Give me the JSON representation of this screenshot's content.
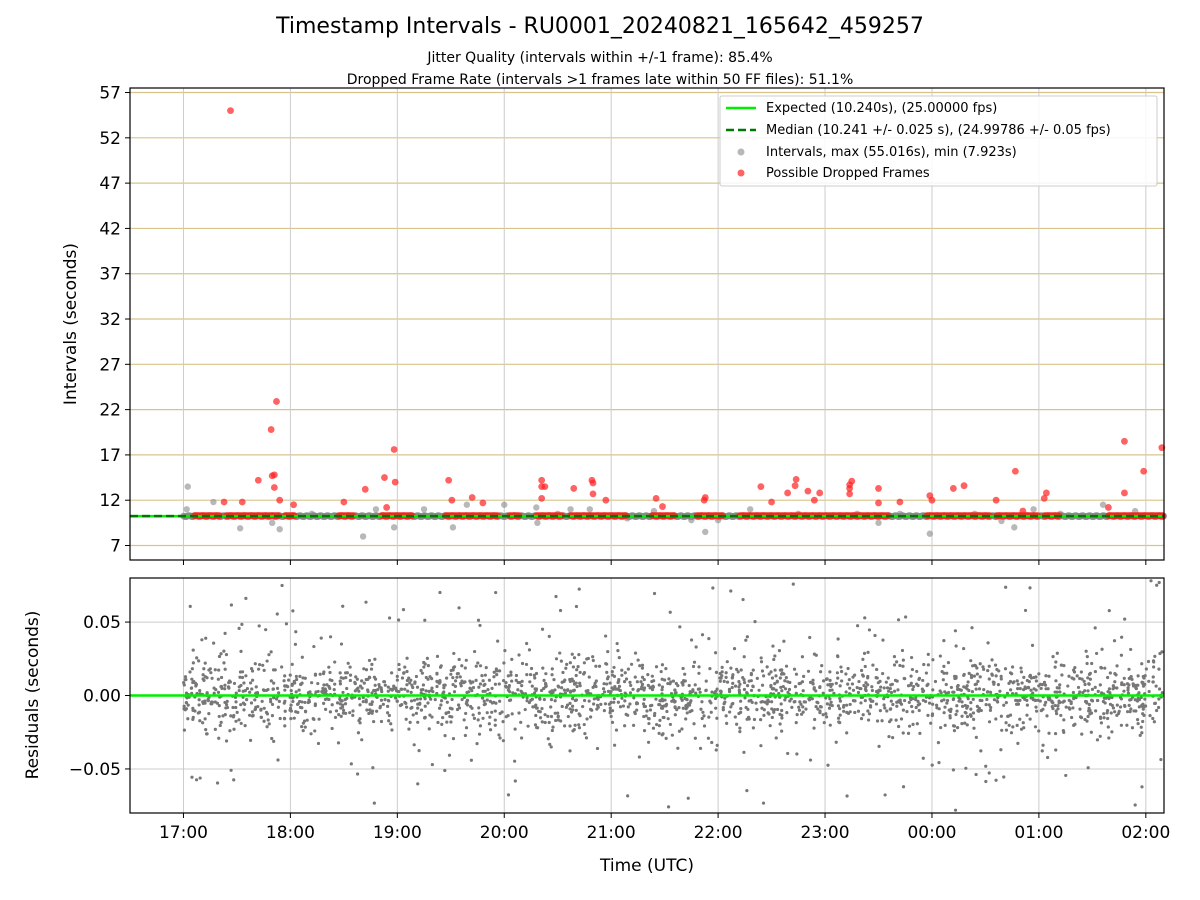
{
  "chart_data": [
    {
      "type": "scatter",
      "title": "Timestamp Intervals - RU0001_20240821_165642_459257",
      "subtitles": [
        "Jitter Quality (intervals within +/-1 frame): 85.4%",
        "Dropped Frame Rate (intervals >1 frames late within 50 FF files): 51.1%"
      ],
      "ylabel": "Intervals (seconds)",
      "ylim": [
        5.4,
        57.5
      ],
      "yticks": [
        7,
        12,
        17,
        22,
        27,
        32,
        37,
        42,
        47,
        52,
        57
      ],
      "xlim_hours": [
        16.5,
        26.17
      ],
      "grid": "on",
      "legend_position": "upper right",
      "series": [
        {
          "name": "Expected (10.240s), (25.00000 fps)",
          "kind": "line",
          "color": "#00ee00",
          "y": 10.24
        },
        {
          "name": "Median (10.241 +/- 0.025 s), (24.99786 +/- 0.05 fps)",
          "kind": "dashed-line",
          "color": "#007700",
          "y": 10.241
        },
        {
          "name": "Intervals, max (55.016s), min (7.923s)",
          "kind": "scatter",
          "color": "#888888",
          "points": [
            [
              17.04,
              13.5
            ],
            [
              17.03,
              11.0
            ],
            [
              17.28,
              11.8
            ],
            [
              17.53,
              8.9
            ],
            [
              17.83,
              9.5
            ],
            [
              17.9,
              8.8
            ],
            [
              18.2,
              10.5
            ],
            [
              18.68,
              8.0
            ],
            [
              18.8,
              11.0
            ],
            [
              18.97,
              9.0
            ],
            [
              19.25,
              11.0
            ],
            [
              19.52,
              9.0
            ],
            [
              19.65,
              11.5
            ],
            [
              20.0,
              11.5
            ],
            [
              20.31,
              9.5
            ],
            [
              20.3,
              11.2
            ],
            [
              20.5,
              10.5
            ],
            [
              20.62,
              11.0
            ],
            [
              20.8,
              11.0
            ],
            [
              21.15,
              10.0
            ],
            [
              21.4,
              10.8
            ],
            [
              21.75,
              9.8
            ],
            [
              21.88,
              8.5
            ],
            [
              22.0,
              9.8
            ],
            [
              22.3,
              11.0
            ],
            [
              22.75,
              10.5
            ],
            [
              23.3,
              10.5
            ],
            [
              23.5,
              9.5
            ],
            [
              23.7,
              10.5
            ],
            [
              23.98,
              8.3
            ],
            [
              24.4,
              10.5
            ],
            [
              24.65,
              9.7
            ],
            [
              24.77,
              9.0
            ],
            [
              24.95,
              11.0
            ],
            [
              25.2,
              10.5
            ],
            [
              25.6,
              11.5
            ],
            [
              25.9,
              10.8
            ]
          ]
        },
        {
          "name": "Possible Dropped Frames",
          "kind": "scatter",
          "color": "#ff2020",
          "points": [
            [
              17.44,
              55.0
            ],
            [
              17.38,
              11.8
            ],
            [
              17.55,
              11.8
            ],
            [
              17.7,
              14.2
            ],
            [
              17.82,
              19.8
            ],
            [
              17.83,
              14.7
            ],
            [
              17.85,
              14.8
            ],
            [
              17.85,
              13.4
            ],
            [
              17.87,
              22.9
            ],
            [
              17.9,
              12.0
            ],
            [
              18.03,
              11.5
            ],
            [
              18.5,
              11.8
            ],
            [
              18.7,
              13.2
            ],
            [
              18.88,
              14.5
            ],
            [
              18.97,
              17.6
            ],
            [
              18.98,
              14.0
            ],
            [
              18.9,
              11.2
            ],
            [
              19.48,
              14.2
            ],
            [
              19.51,
              12.0
            ],
            [
              19.7,
              12.3
            ],
            [
              19.8,
              11.7
            ],
            [
              20.35,
              14.2
            ],
            [
              20.35,
              13.5
            ],
            [
              20.38,
              13.5
            ],
            [
              20.35,
              12.2
            ],
            [
              20.65,
              13.3
            ],
            [
              20.82,
              14.2
            ],
            [
              20.83,
              13.9
            ],
            [
              20.83,
              12.7
            ],
            [
              20.95,
              12.0
            ],
            [
              21.42,
              12.2
            ],
            [
              21.48,
              11.3
            ],
            [
              21.87,
              12.0
            ],
            [
              21.88,
              12.3
            ],
            [
              22.4,
              13.5
            ],
            [
              22.5,
              11.8
            ],
            [
              22.65,
              12.8
            ],
            [
              22.72,
              13.6
            ],
            [
              22.73,
              14.3
            ],
            [
              22.84,
              13.0
            ],
            [
              22.9,
              12.0
            ],
            [
              22.95,
              12.8
            ],
            [
              23.23,
              13.3
            ],
            [
              23.23,
              13.7
            ],
            [
              23.25,
              14.1
            ],
            [
              23.23,
              12.7
            ],
            [
              23.5,
              13.3
            ],
            [
              23.5,
              11.7
            ],
            [
              23.98,
              12.5
            ],
            [
              24.0,
              12.0
            ],
            [
              23.7,
              11.8
            ],
            [
              24.2,
              13.3
            ],
            [
              24.3,
              13.6
            ],
            [
              24.6,
              12.0
            ],
            [
              24.78,
              15.2
            ],
            [
              24.85,
              10.8
            ],
            [
              25.07,
              12.8
            ],
            [
              25.05,
              12.2
            ],
            [
              25.8,
              18.5
            ],
            [
              25.8,
              12.8
            ],
            [
              25.98,
              15.2
            ],
            [
              26.15,
              17.8
            ],
            [
              25.65,
              11.2
            ]
          ]
        }
      ]
    },
    {
      "type": "scatter",
      "xlabel": "Time (UTC)",
      "ylabel": "Residuals (seconds)",
      "ylim": [
        -0.08,
        0.08
      ],
      "yticks": [
        -0.05,
        0.0,
        0.05
      ],
      "ytick_labels": [
        "−0.05",
        "0.00",
        "0.05"
      ],
      "xticks_hours": [
        17,
        18,
        19,
        20,
        21,
        22,
        23,
        24,
        25,
        26
      ],
      "xtick_labels": [
        "17:00",
        "18:00",
        "19:00",
        "20:00",
        "21:00",
        "22:00",
        "23:00",
        "00:00",
        "01:00",
        "02:00"
      ],
      "grid": "on",
      "zero_line_color": "#00ee00",
      "residual_color": "#777777",
      "residuals_x_range": [
        17.0,
        26.17
      ],
      "residuals_count": 2400,
      "residuals_typical_spread": 0.012,
      "residuals_outlier_fraction": 0.16,
      "residuals_outlier_spread": 0.045
    }
  ]
}
